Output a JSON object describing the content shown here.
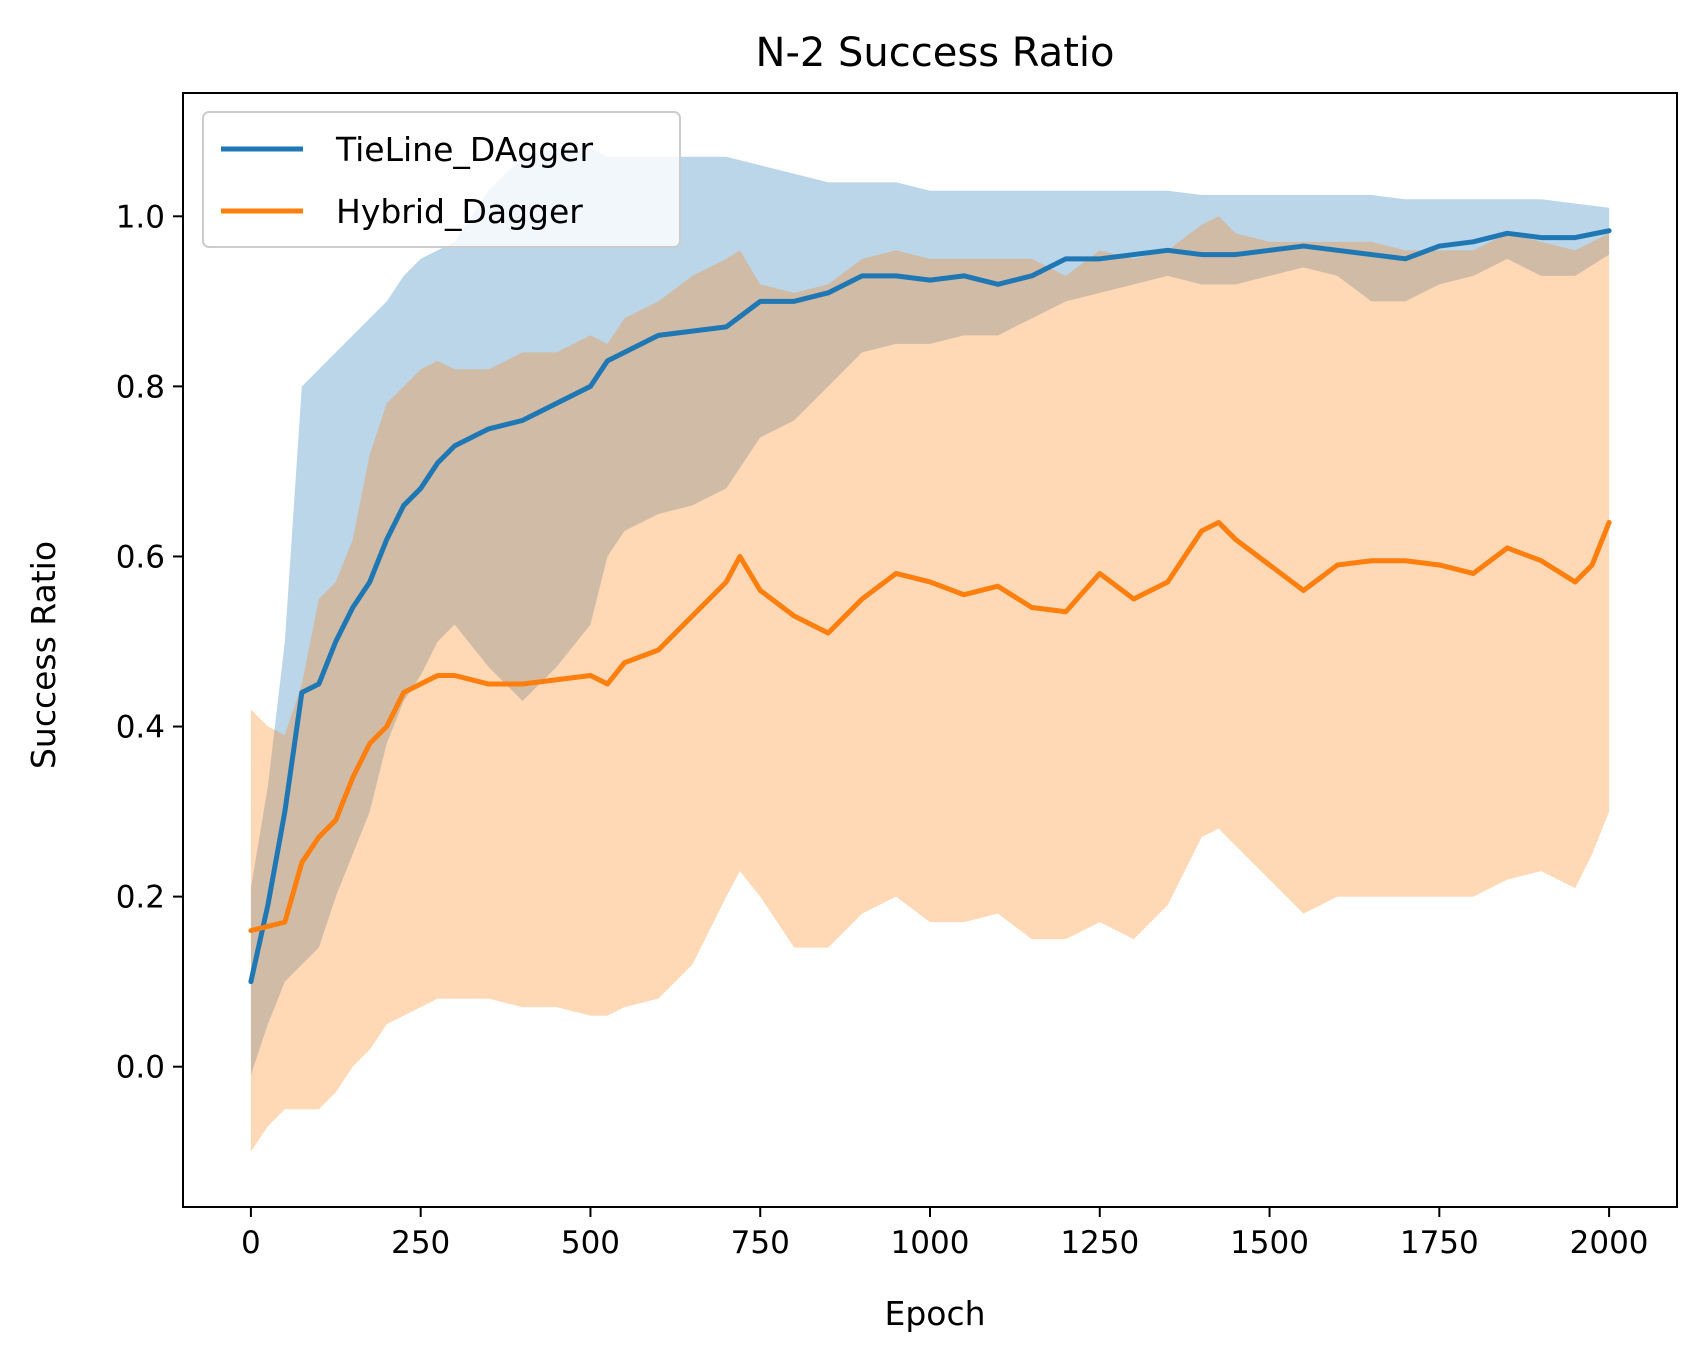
{
  "chart_data": {
    "type": "line",
    "title": "N-2 Success Ratio",
    "xlabel": "Epoch",
    "ylabel": "Success Ratio",
    "xlim": [
      -100,
      2100
    ],
    "ylim": [
      -0.165,
      1.145
    ],
    "xticks": [
      0,
      250,
      500,
      750,
      1000,
      1250,
      1500,
      1750,
      2000
    ],
    "xtick_labels": [
      "0",
      "250",
      "500",
      "750",
      "1000",
      "1250",
      "1500",
      "1750",
      "2000"
    ],
    "yticks": [
      0.0,
      0.2,
      0.4,
      0.6,
      0.8,
      1.0
    ],
    "ytick_labels": [
      "0.0",
      "0.2",
      "0.4",
      "0.6",
      "0.8",
      "1.0"
    ],
    "grid": false,
    "legend_position": "upper-left",
    "series": [
      {
        "name": "TieLine_DAgger",
        "color": "#1f77b4",
        "band_color": "#1f77b4",
        "band_opacity": 0.3,
        "x": [
          0,
          25,
          50,
          75,
          100,
          125,
          150,
          175,
          200,
          225,
          250,
          275,
          300,
          350,
          400,
          450,
          500,
          525,
          550,
          600,
          650,
          700,
          750,
          800,
          850,
          900,
          950,
          1000,
          1050,
          1100,
          1150,
          1200,
          1250,
          1300,
          1350,
          1400,
          1450,
          1500,
          1550,
          1600,
          1650,
          1700,
          1750,
          1800,
          1850,
          1900,
          1950,
          2000
        ],
        "mean": [
          0.1,
          0.19,
          0.3,
          0.44,
          0.45,
          0.5,
          0.54,
          0.57,
          0.62,
          0.66,
          0.68,
          0.71,
          0.73,
          0.75,
          0.76,
          0.78,
          0.8,
          0.83,
          0.84,
          0.86,
          0.865,
          0.87,
          0.9,
          0.9,
          0.91,
          0.93,
          0.93,
          0.925,
          0.93,
          0.92,
          0.93,
          0.95,
          0.95,
          0.955,
          0.96,
          0.955,
          0.955,
          0.96,
          0.965,
          0.96,
          0.955,
          0.95,
          0.965,
          0.97,
          0.98,
          0.975,
          0.975,
          0.983
        ],
        "lower": [
          -0.01,
          0.05,
          0.1,
          0.12,
          0.14,
          0.2,
          0.25,
          0.3,
          0.38,
          0.43,
          0.46,
          0.5,
          0.52,
          0.47,
          0.43,
          0.47,
          0.52,
          0.6,
          0.63,
          0.65,
          0.66,
          0.68,
          0.74,
          0.76,
          0.8,
          0.84,
          0.85,
          0.85,
          0.86,
          0.86,
          0.88,
          0.9,
          0.91,
          0.92,
          0.93,
          0.92,
          0.92,
          0.93,
          0.94,
          0.93,
          0.9,
          0.9,
          0.92,
          0.93,
          0.95,
          0.93,
          0.93,
          0.955
        ],
        "upper": [
          0.21,
          0.33,
          0.5,
          0.8,
          0.82,
          0.84,
          0.86,
          0.88,
          0.9,
          0.93,
          0.95,
          0.96,
          0.97,
          1.03,
          1.07,
          1.08,
          1.08,
          1.07,
          1.07,
          1.07,
          1.07,
          1.07,
          1.06,
          1.05,
          1.04,
          1.04,
          1.04,
          1.03,
          1.03,
          1.03,
          1.03,
          1.03,
          1.03,
          1.03,
          1.03,
          1.025,
          1.025,
          1.025,
          1.025,
          1.025,
          1.025,
          1.02,
          1.02,
          1.02,
          1.02,
          1.02,
          1.015,
          1.01
        ]
      },
      {
        "name": "Hybrid_Dagger",
        "color": "#ff7f0e",
        "band_color": "#ff7f0e",
        "band_opacity": 0.3,
        "x": [
          0,
          25,
          50,
          75,
          100,
          125,
          150,
          175,
          200,
          225,
          250,
          275,
          300,
          350,
          400,
          450,
          500,
          525,
          550,
          600,
          650,
          700,
          720,
          750,
          800,
          850,
          900,
          950,
          1000,
          1050,
          1100,
          1150,
          1200,
          1250,
          1300,
          1350,
          1400,
          1425,
          1450,
          1500,
          1550,
          1600,
          1650,
          1700,
          1750,
          1800,
          1850,
          1900,
          1950,
          1975,
          2000
        ],
        "mean": [
          0.16,
          0.165,
          0.17,
          0.24,
          0.27,
          0.29,
          0.34,
          0.38,
          0.4,
          0.44,
          0.45,
          0.46,
          0.46,
          0.45,
          0.45,
          0.455,
          0.46,
          0.45,
          0.475,
          0.49,
          0.53,
          0.57,
          0.6,
          0.56,
          0.53,
          0.51,
          0.55,
          0.58,
          0.57,
          0.555,
          0.565,
          0.54,
          0.535,
          0.58,
          0.55,
          0.57,
          0.63,
          0.64,
          0.62,
          0.59,
          0.56,
          0.59,
          0.595,
          0.595,
          0.59,
          0.58,
          0.61,
          0.595,
          0.57,
          0.59,
          0.64
        ],
        "lower": [
          -0.1,
          -0.07,
          -0.05,
          -0.05,
          -0.05,
          -0.03,
          0.0,
          0.02,
          0.05,
          0.06,
          0.07,
          0.08,
          0.08,
          0.08,
          0.07,
          0.07,
          0.06,
          0.06,
          0.07,
          0.08,
          0.12,
          0.2,
          0.23,
          0.2,
          0.14,
          0.14,
          0.18,
          0.2,
          0.17,
          0.17,
          0.18,
          0.15,
          0.15,
          0.17,
          0.15,
          0.19,
          0.27,
          0.28,
          0.26,
          0.22,
          0.18,
          0.2,
          0.2,
          0.2,
          0.2,
          0.2,
          0.22,
          0.23,
          0.21,
          0.25,
          0.3
        ],
        "upper": [
          0.42,
          0.4,
          0.39,
          0.45,
          0.55,
          0.57,
          0.62,
          0.72,
          0.78,
          0.8,
          0.82,
          0.83,
          0.82,
          0.82,
          0.84,
          0.84,
          0.86,
          0.85,
          0.88,
          0.9,
          0.93,
          0.95,
          0.96,
          0.92,
          0.91,
          0.92,
          0.95,
          0.96,
          0.95,
          0.95,
          0.95,
          0.95,
          0.93,
          0.96,
          0.95,
          0.96,
          0.99,
          1.0,
          0.98,
          0.97,
          0.97,
          0.97,
          0.97,
          0.96,
          0.96,
          0.96,
          0.98,
          0.97,
          0.96,
          0.97,
          0.98
        ]
      }
    ]
  }
}
